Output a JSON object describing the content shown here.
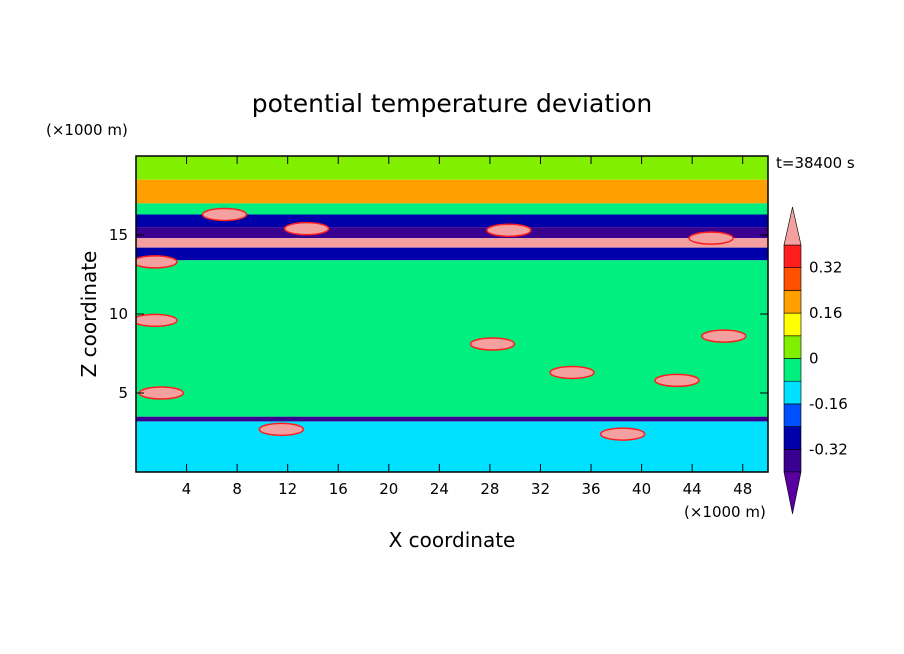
{
  "chart_data": {
    "type": "heatmap",
    "title": "potential temperature deviation",
    "time_label": "t=38400 s",
    "xlabel": "X coordinate",
    "ylabel": "Z coordinate",
    "x_unit": "(×1000 m)",
    "y_unit": "(×1000 m)",
    "xlim": [
      0,
      50
    ],
    "ylim": [
      0,
      20
    ],
    "x_ticks": [
      4,
      8,
      12,
      16,
      20,
      24,
      28,
      32,
      36,
      40,
      44,
      48
    ],
    "y_ticks": [
      5,
      10,
      15
    ],
    "colorbar": {
      "labels": [
        "0.32",
        "0.16",
        "0",
        "-0.16",
        "-0.32"
      ],
      "label_values": [
        0.32,
        0.16,
        0,
        -0.16,
        -0.32
      ],
      "levels": [
        -0.4,
        -0.32,
        -0.24,
        -0.16,
        -0.08,
        0,
        0.08,
        0.16,
        0.24,
        0.32,
        0.4
      ],
      "colors": [
        "#5a00a0",
        "#3a0090",
        "#0000aa",
        "#0050ff",
        "#00e0ff",
        "#00f080",
        "#80f000",
        "#ffff00",
        "#ffa000",
        "#ff5000",
        "#ff1e1e",
        "#f5a0a0"
      ]
    },
    "field_layers": [
      {
        "z_range": [
          18.5,
          20.0
        ],
        "value": 0.05
      },
      {
        "z_range": [
          17.0,
          18.5
        ],
        "value": 0.22
      },
      {
        "z_range": [
          16.3,
          17.0
        ],
        "value": -0.05
      },
      {
        "z_range": [
          15.5,
          16.3
        ],
        "value": -0.28
      },
      {
        "z_range": [
          14.8,
          15.5
        ],
        "value": -0.36
      },
      {
        "z_range": [
          14.2,
          14.8
        ],
        "value": 0.45
      },
      {
        "z_range": [
          13.4,
          14.2
        ],
        "value": -0.3
      },
      {
        "z_range": [
          3.5,
          13.4
        ],
        "value": -0.02
      },
      {
        "z_range": [
          3.2,
          3.5
        ],
        "value": -0.34
      },
      {
        "z_range": [
          0.0,
          3.2
        ],
        "value": -0.12
      }
    ],
    "features": [
      {
        "x": 7.0,
        "z": 16.3,
        "value": 0.45
      },
      {
        "x": 13.5,
        "z": 15.4,
        "value": 0.45
      },
      {
        "x": 29.5,
        "z": 15.3,
        "value": 0.45
      },
      {
        "x": 45.5,
        "z": 14.8,
        "value": 0.45
      },
      {
        "x": 1.5,
        "z": 13.3,
        "value": 0.45
      },
      {
        "x": 1.5,
        "z": 9.6,
        "value": 0.45
      },
      {
        "x": 28.2,
        "z": 8.1,
        "value": 0.45
      },
      {
        "x": 46.5,
        "z": 8.6,
        "value": 0.45
      },
      {
        "x": 42.8,
        "z": 5.8,
        "value": 0.45
      },
      {
        "x": 34.5,
        "z": 6.3,
        "value": 0.45
      },
      {
        "x": 11.5,
        "z": 2.7,
        "value": 0.45
      },
      {
        "x": 38.5,
        "z": 2.4,
        "value": 0.45
      },
      {
        "x": 2.0,
        "z": 5.0,
        "value": 0.45
      }
    ]
  }
}
